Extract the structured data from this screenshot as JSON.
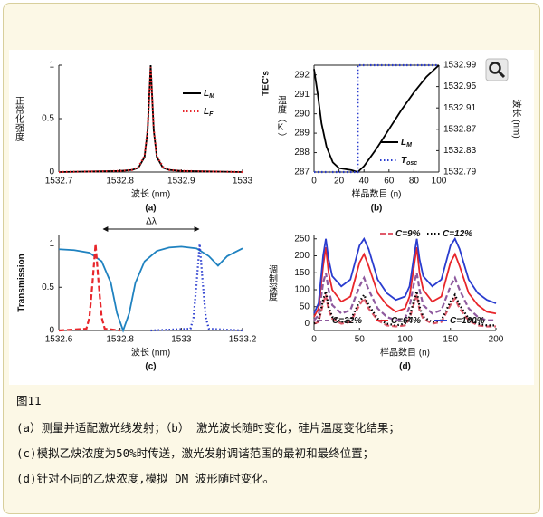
{
  "chart_data": [
    {
      "type": "line",
      "label": "(a)",
      "xlabel": "波长 (nm)",
      "ylabel": "正常化强度",
      "xlim": [
        1532.7,
        1533
      ],
      "xticks": [
        1532.7,
        1532.8,
        1532.9,
        1533
      ],
      "ylim": [
        0,
        1
      ],
      "yticks": [
        0,
        0.5,
        1
      ],
      "x": [
        1532.7,
        1532.8,
        1532.82,
        1532.83,
        1532.84,
        1532.845,
        1532.85,
        1532.855,
        1532.86,
        1532.87,
        1532.88,
        1532.9,
        1533
      ],
      "series": [
        {
          "name": "L",
          "name_sub": "M",
          "color": "#000000",
          "dash": "solid",
          "values": [
            0,
            0.01,
            0.02,
            0.04,
            0.14,
            0.39,
            1,
            0.39,
            0.14,
            0.04,
            0.02,
            0.01,
            0
          ]
        },
        {
          "name": "L",
          "name_sub": "F",
          "color": "#e8262b",
          "dash": "dotted",
          "values": [
            0,
            0.01,
            0.02,
            0.05,
            0.15,
            0.4,
            0.98,
            0.4,
            0.15,
            0.05,
            0.02,
            0.01,
            0
          ]
        }
      ]
    },
    {
      "type": "line",
      "label": "(b)",
      "xlabel": "样品数目 (n)",
      "ylabel": "TEC's",
      "ylabel_cn": "温度（K）",
      "y2label": "波长 (nm)",
      "xlim": [
        0,
        100
      ],
      "xticks": [
        0,
        20,
        40,
        60,
        80,
        100
      ],
      "ylim": [
        287,
        292.5
      ],
      "yticks": [
        287,
        288,
        289,
        290,
        291,
        292
      ],
      "y2lim": [
        1532.79,
        1532.99
      ],
      "y2ticks": [
        1532.79,
        1532.83,
        1532.87,
        1532.91,
        1532.95,
        1532.99
      ],
      "series": [
        {
          "name": "L",
          "name_sub": "M",
          "color": "#000000",
          "dash": "solid",
          "x": [
            0,
            3,
            6,
            10,
            15,
            20,
            30,
            35,
            40,
            50,
            60,
            70,
            80,
            90,
            100
          ],
          "values": [
            292.3,
            291,
            289.5,
            288.3,
            287.5,
            287.2,
            287.1,
            287,
            287.3,
            288.2,
            289.2,
            290.2,
            291.1,
            291.9,
            292.5
          ]
        },
        {
          "name": "T",
          "name_sub": "osc",
          "color": "#2a3ccf",
          "dash": "dotted",
          "axis": "y2",
          "x": [
            0,
            35,
            35,
            100
          ],
          "values": [
            1532.79,
            1532.79,
            1532.99,
            1532.99
          ]
        }
      ]
    },
    {
      "type": "line",
      "label": "(c)",
      "xlabel": "波长 (nm)",
      "ylabel": "Transmission",
      "annotation": "Δλ",
      "xlim": [
        1532.6,
        1533.2
      ],
      "xticks": [
        1532.6,
        1532.8,
        1533,
        1533.2
      ],
      "ylim": [
        0,
        1.1
      ],
      "yticks": [
        0,
        0.5,
        1
      ],
      "series": [
        {
          "color": "#1f82c0",
          "dash": "solid",
          "x": [
            1532.6,
            1532.65,
            1532.7,
            1532.74,
            1532.77,
            1532.79,
            1532.81,
            1532.83,
            1532.85,
            1532.88,
            1532.92,
            1532.96,
            1533,
            1533.05,
            1533.09,
            1533.12,
            1533.15,
            1533.2
          ],
          "values": [
            0.94,
            0.93,
            0.9,
            0.8,
            0.55,
            0.2,
            0,
            0.2,
            0.55,
            0.8,
            0.92,
            0.96,
            0.97,
            0.95,
            0.86,
            0.75,
            0.86,
            0.95
          ]
        },
        {
          "color": "#e8262b",
          "dash": "dashed",
          "x": [
            1532.6,
            1532.69,
            1532.7,
            1532.71,
            1532.72,
            1532.73,
            1532.74,
            1532.75,
            1532.8
          ],
          "values": [
            0,
            0.02,
            0.15,
            0.55,
            1,
            0.55,
            0.15,
            0.02,
            0
          ]
        },
        {
          "color": "#2a3ccf",
          "dash": "dotted",
          "x": [
            1532.9,
            1533.03,
            1533.04,
            1533.05,
            1533.06,
            1533.07,
            1533.08,
            1533.09,
            1533.2
          ],
          "values": [
            0,
            0.02,
            0.15,
            0.55,
            1,
            0.55,
            0.15,
            0.02,
            0
          ]
        }
      ]
    },
    {
      "type": "line",
      "label": "(d)",
      "xlabel": "样品数目 (n)",
      "ylabel": "调制深度",
      "xlim": [
        0,
        200
      ],
      "xticks": [
        0,
        50,
        100,
        150,
        200
      ],
      "ylim": [
        -20,
        260
      ],
      "yticks": [
        0,
        50,
        100,
        150,
        200,
        250
      ],
      "x": [
        0,
        5,
        10,
        13,
        16,
        20,
        30,
        40,
        50,
        55,
        60,
        70,
        80,
        90,
        100,
        105,
        110,
        113,
        116,
        120,
        130,
        140,
        150,
        155,
        160,
        170,
        180,
        190,
        200
      ],
      "series": [
        {
          "name": "C=9%",
          "color": "#e05a6a",
          "dash": "dashed",
          "values": [
            0,
            5,
            60,
            85,
            40,
            15,
            0,
            5,
            55,
            75,
            45,
            10,
            -5,
            -8,
            -5,
            15,
            60,
            85,
            40,
            15,
            0,
            5,
            55,
            75,
            45,
            10,
            -5,
            -8,
            -8
          ]
        },
        {
          "name": "C=12%",
          "color": "#000000",
          "dash": "dotted",
          "values": [
            0,
            10,
            70,
            95,
            50,
            20,
            5,
            10,
            65,
            85,
            55,
            15,
            0,
            -5,
            0,
            20,
            70,
            95,
            50,
            20,
            5,
            10,
            65,
            85,
            55,
            15,
            0,
            -5,
            -5
          ]
        },
        {
          "name": "C=32%",
          "color": "#8e5a9e",
          "dash": "dashed",
          "values": [
            10,
            25,
            120,
            150,
            100,
            55,
            30,
            40,
            110,
            135,
            100,
            45,
            20,
            10,
            15,
            50,
            120,
            150,
            100,
            55,
            30,
            40,
            110,
            135,
            100,
            45,
            20,
            10,
            10
          ]
        },
        {
          "name": "C=64%",
          "color": "#e8262b",
          "dash": "solid",
          "values": [
            20,
            45,
            170,
            225,
            150,
            100,
            65,
            80,
            180,
            205,
            170,
            90,
            55,
            35,
            45,
            80,
            170,
            225,
            150,
            100,
            65,
            80,
            180,
            205,
            170,
            90,
            55,
            35,
            30
          ]
        },
        {
          "name": "C=100%",
          "color": "#2a3ccf",
          "dash": "solid",
          "values": [
            30,
            60,
            200,
            250,
            190,
            140,
            110,
            130,
            230,
            250,
            220,
            130,
            90,
            70,
            80,
            110,
            200,
            250,
            190,
            140,
            110,
            130,
            230,
            250,
            220,
            130,
            90,
            70,
            60
          ]
        }
      ]
    }
  ],
  "caption": {
    "figure": "图11",
    "lines": [
      "(a）测量并适配激光线发射；（b） 激光波长随时变化，硅片温度变化结果；",
      "(c)模拟乙炔浓度为50%时传送，激光发射调谐范围的最初和最终位置；",
      "(d)针对不同的乙炔浓度,模拟 DM 波形随时变化。"
    ]
  }
}
